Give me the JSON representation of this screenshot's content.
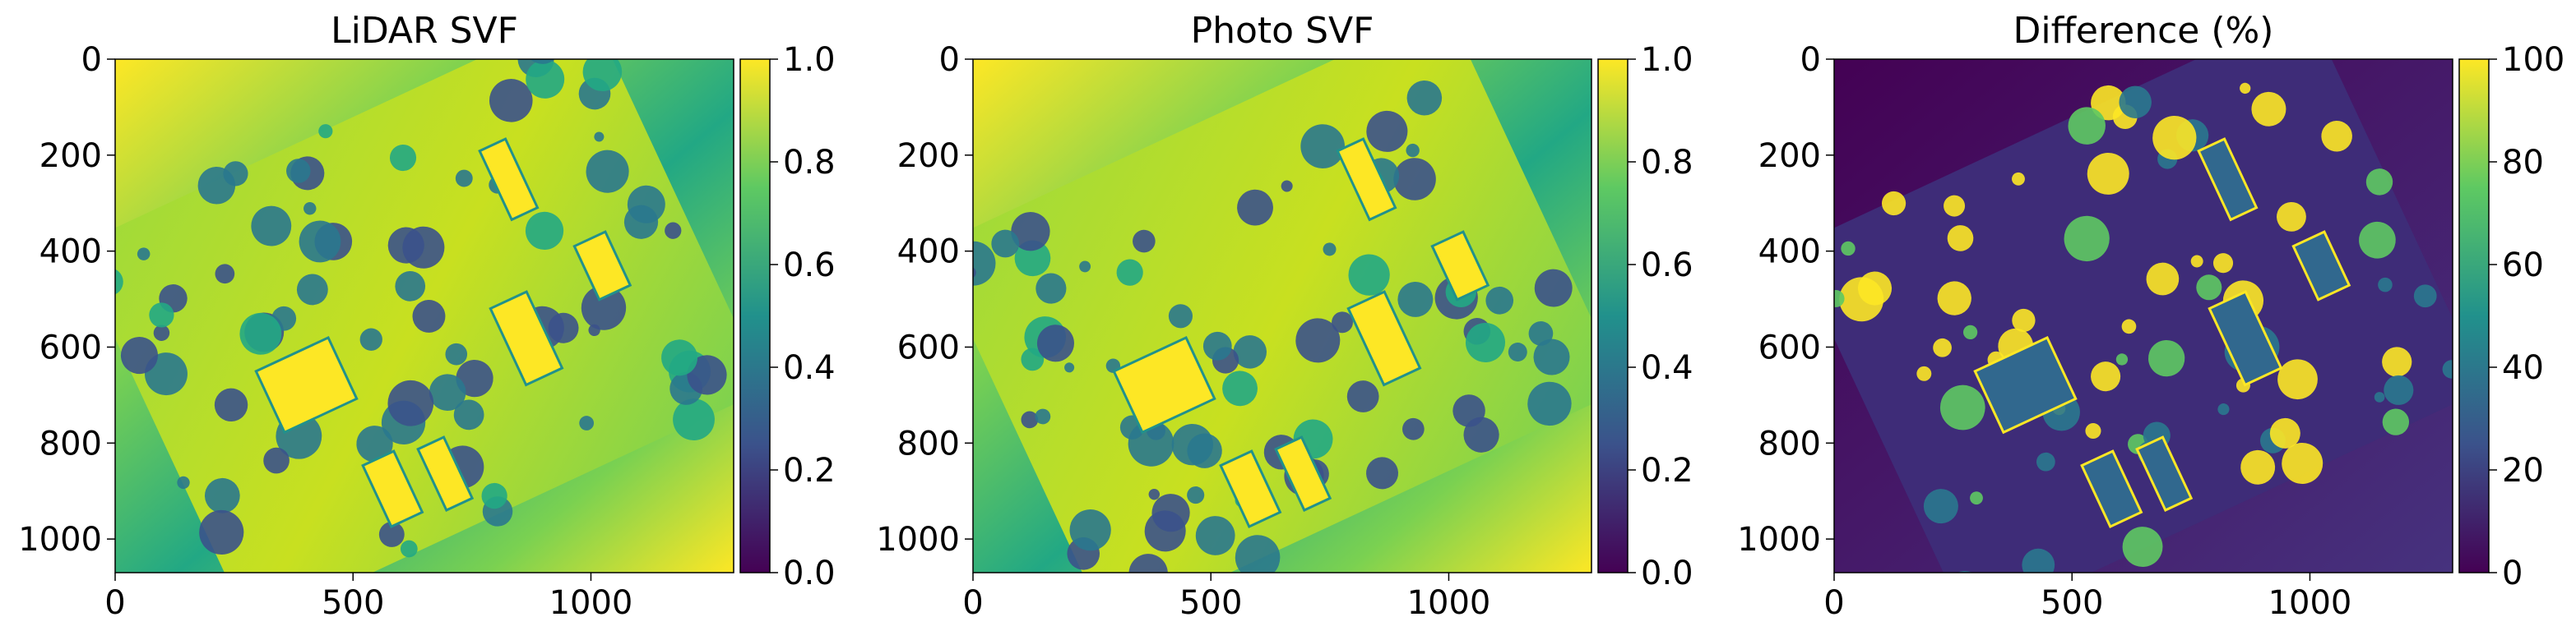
{
  "chart_data": [
    {
      "type": "heatmap",
      "title": "LiDAR SVF",
      "xlabel": "",
      "ylabel": "",
      "x_ticks": [
        0,
        500,
        1000
      ],
      "y_ticks": [
        0,
        200,
        400,
        600,
        800,
        1000
      ],
      "xlim": [
        0,
        1300
      ],
      "ylim": [
        1070,
        0
      ],
      "colormap": "viridis",
      "color_range": [
        0.0,
        1.0
      ],
      "colorbar_ticks": [
        "0.0",
        "0.2",
        "0.4",
        "0.6",
        "0.8",
        "1.0"
      ],
      "grid": false
    },
    {
      "type": "heatmap",
      "title": "Photo SVF",
      "xlabel": "",
      "ylabel": "",
      "x_ticks": [
        0,
        500,
        1000
      ],
      "y_ticks": [
        0,
        200,
        400,
        600,
        800,
        1000
      ],
      "xlim": [
        0,
        1300
      ],
      "ylim": [
        1070,
        0
      ],
      "colormap": "viridis",
      "color_range": [
        0.0,
        1.0
      ],
      "colorbar_ticks": [
        "0.0",
        "0.2",
        "0.4",
        "0.6",
        "0.8",
        "1.0"
      ],
      "grid": false
    },
    {
      "type": "heatmap",
      "title": "Difference (%)",
      "xlabel": "",
      "ylabel": "",
      "x_ticks": [
        0,
        500,
        1000
      ],
      "y_ticks": [
        0,
        200,
        400,
        600,
        800,
        1000
      ],
      "xlim": [
        0,
        1300
      ],
      "ylim": [
        1070,
        0
      ],
      "colormap": "viridis",
      "color_range": [
        0,
        100
      ],
      "colorbar_ticks": [
        "0",
        "20",
        "40",
        "60",
        "80",
        "100"
      ],
      "grid": false
    }
  ],
  "colors": {
    "viridis_low": "#440154",
    "viridis_q1": "#3b528b",
    "viridis_mid": "#21918c",
    "viridis_q3": "#5ec962",
    "viridis_high": "#fde725"
  }
}
